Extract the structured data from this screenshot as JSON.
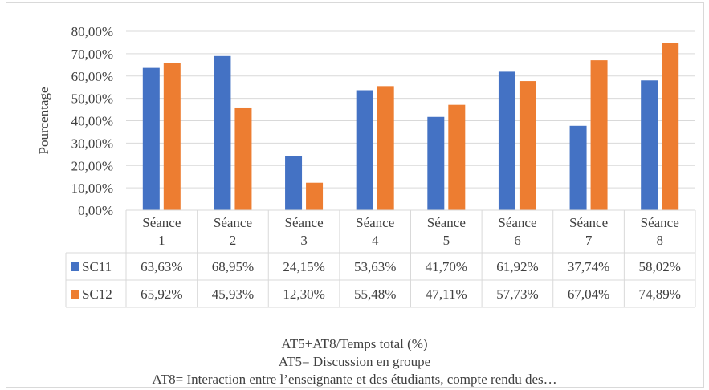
{
  "chart_data": {
    "type": "bar",
    "ylabel": "Pourcentage",
    "xlabel": "",
    "ylim": [
      0,
      80
    ],
    "yticks": [
      "0,00%",
      "10,00%",
      "20,00%",
      "30,00%",
      "40,00%",
      "50,00%",
      "60,00%",
      "70,00%",
      "80,00%"
    ],
    "grid": true,
    "categories": [
      [
        "Séance",
        "1"
      ],
      [
        "Séance",
        "2"
      ],
      [
        "Séance",
        "3"
      ],
      [
        "Séance",
        "4"
      ],
      [
        "Séance",
        "5"
      ],
      [
        "Séance",
        "6"
      ],
      [
        "Séance",
        "7"
      ],
      [
        "Séance",
        "8"
      ]
    ],
    "series": [
      {
        "name": "SC11",
        "color": "#4472C4",
        "values": [
          63.63,
          68.95,
          24.15,
          53.63,
          41.7,
          61.92,
          37.74,
          58.02
        ],
        "labels": [
          "63,63%",
          "68,95%",
          "24,15%",
          "53,63%",
          "41,70%",
          "61,92%",
          "37,74%",
          "58,02%"
        ]
      },
      {
        "name": "SC12",
        "color": "#ED7D31",
        "values": [
          65.92,
          45.93,
          12.3,
          55.48,
          47.11,
          57.73,
          67.04,
          74.89
        ],
        "labels": [
          "65,92%",
          "45,93%",
          "12,30%",
          "55,48%",
          "47,11%",
          "57,73%",
          "67,04%",
          "74,89%"
        ]
      }
    ]
  },
  "caption": {
    "line1": "AT5+AT8/Temps total (%)",
    "line2": "AT5= Discussion en groupe",
    "line3": "AT8= Interaction entre l’enseignante et des étudiants, compte rendu des…"
  }
}
